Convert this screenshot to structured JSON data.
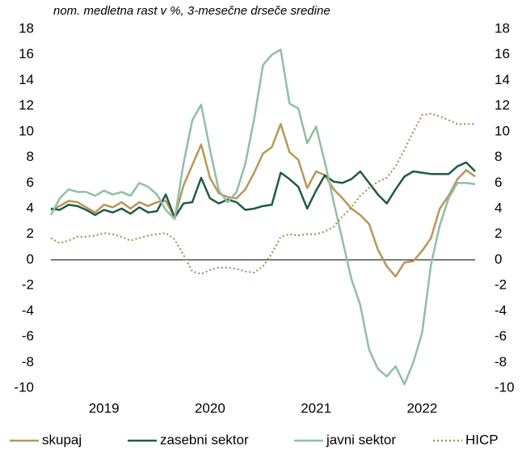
{
  "chart_data": {
    "type": "line",
    "subtitle": "nom. medletna rast v %, 3-mesečne drseče sredine",
    "categories": [
      null,
      null,
      null,
      null,
      null,
      null,
      "2019",
      null,
      null,
      null,
      null,
      null,
      null,
      null,
      null,
      null,
      null,
      null,
      "2020",
      null,
      null,
      null,
      null,
      null,
      null,
      null,
      null,
      null,
      null,
      null,
      "2021",
      null,
      null,
      null,
      null,
      null,
      null,
      null,
      null,
      null,
      null,
      null,
      "2022",
      null,
      null,
      null,
      null,
      null,
      null
    ],
    "series": [
      {
        "name": "skupaj",
        "color": "#b8965a",
        "style": "solid",
        "values": [
          3.9,
          4.2,
          4.6,
          4.5,
          4.1,
          3.7,
          4.3,
          4.1,
          4.5,
          4.0,
          4.5,
          4.2,
          4.5,
          4.6,
          3.3,
          5.8,
          7.4,
          9.0,
          6.4,
          5.2,
          4.9,
          4.8,
          5.5,
          6.8,
          8.3,
          8.8,
          10.6,
          8.4,
          7.8,
          5.6,
          6.9,
          6.6,
          5.5,
          4.8,
          4.0,
          3.5,
          2.8,
          0.8,
          -0.5,
          -1.3,
          -0.2,
          -0.1,
          0.7,
          1.7,
          4.0,
          5.0,
          6.3,
          7.0,
          6.5
        ]
      },
      {
        "name": "zasebni sektor",
        "color": "#1f5c43",
        "style": "solid",
        "values": [
          4.0,
          3.9,
          4.3,
          4.2,
          3.9,
          3.5,
          3.9,
          3.7,
          4.0,
          3.6,
          4.1,
          3.7,
          3.8,
          5.1,
          3.3,
          4.4,
          4.5,
          6.4,
          4.8,
          4.4,
          4.7,
          4.5,
          3.9,
          4.0,
          4.2,
          4.3,
          6.8,
          6.3,
          5.7,
          4.0,
          5.4,
          6.6,
          6.1,
          6.0,
          6.3,
          6.9,
          6.0,
          5.1,
          4.4,
          5.5,
          6.5,
          6.9,
          6.8,
          6.7,
          6.7,
          6.7,
          7.3,
          7.6,
          6.9
        ]
      },
      {
        "name": "javni sektor",
        "color": "#8fbfa5",
        "style": "solid",
        "values": [
          3.5,
          4.8,
          5.5,
          5.3,
          5.3,
          5.0,
          5.4,
          5.1,
          5.3,
          5.0,
          6.0,
          5.7,
          5.1,
          3.9,
          3.2,
          7.5,
          10.9,
          12.1,
          8.6,
          5.4,
          4.5,
          5.3,
          7.5,
          11.0,
          15.2,
          16.0,
          16.4,
          12.2,
          11.8,
          9.1,
          10.4,
          7.6,
          4.5,
          1.5,
          -1.5,
          -3.5,
          -7.0,
          -8.5,
          -9.1,
          -8.3,
          -9.7,
          -8.0,
          -5.7,
          -0.4,
          2.7,
          4.8,
          6.0,
          6.0,
          5.9
        ]
      },
      {
        "name": "HICP",
        "color": "#a88550",
        "style": "dotted",
        "values": [
          1.7,
          1.3,
          1.5,
          1.8,
          1.8,
          1.9,
          2.1,
          2.0,
          1.8,
          1.5,
          1.7,
          1.9,
          2.0,
          2.1,
          1.6,
          0.4,
          -0.9,
          -1.1,
          -0.8,
          -0.6,
          -0.6,
          -0.7,
          -0.9,
          -1.0,
          -0.5,
          0.5,
          1.8,
          2.0,
          1.9,
          2.0,
          2.0,
          2.2,
          2.6,
          3.4,
          4.1,
          5.0,
          5.6,
          6.1,
          6.4,
          7.3,
          8.6,
          10.0,
          11.3,
          11.4,
          11.2,
          10.9,
          10.6,
          10.6,
          10.6
        ]
      }
    ],
    "ylim": [
      -10,
      18
    ],
    "yticks": [
      -10,
      -8,
      -6,
      -4,
      -2,
      0,
      2,
      4,
      6,
      8,
      10,
      12,
      14,
      16,
      18
    ],
    "y2lim": [
      -10,
      18
    ],
    "y2ticks": [
      -10,
      -8,
      -6,
      -4,
      -2,
      0,
      2,
      4,
      6,
      8,
      10,
      12,
      14,
      16,
      18
    ],
    "grid": false,
    "legend": "bottom"
  }
}
